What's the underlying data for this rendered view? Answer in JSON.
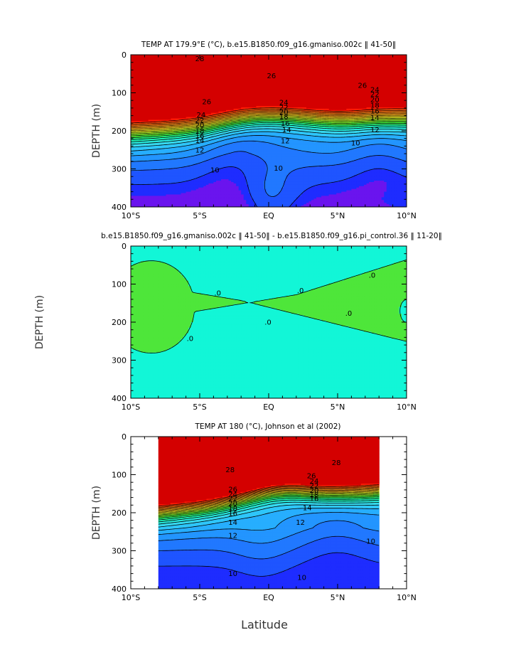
{
  "chart_data": [
    {
      "type": "contour",
      "title": "TEMP AT 179.9°E (°C), b.e15.B1850.f09_g16.gmaniso.002c ‖ 41-50‖",
      "ylabel": "DEPTH (m)",
      "x_ticks": [
        "10°S",
        "5°S",
        "EQ",
        "5°N",
        "10°N"
      ],
      "y_ticks": [
        "0",
        "100",
        "200",
        "300",
        "400"
      ],
      "xlim": [
        -10,
        10
      ],
      "ylim": [
        0,
        400
      ],
      "data_xlim": [
        -10,
        10
      ],
      "levels": [
        10,
        11,
        12,
        13,
        14,
        15,
        16,
        17,
        18,
        19,
        20,
        21,
        22,
        23,
        24,
        25,
        26,
        27,
        28
      ],
      "contour_labels": [
        {
          "text": "28",
          "lat": -5.0,
          "depth": 10
        },
        {
          "text": "26",
          "lat": 0.2,
          "depth": 55
        },
        {
          "text": "26",
          "lat": 6.8,
          "depth": 80
        },
        {
          "text": "26",
          "lat": -4.5,
          "depth": 123
        },
        {
          "text": "24",
          "lat": 1.1,
          "depth": 125
        },
        {
          "text": "24",
          "lat": 7.7,
          "depth": 92
        },
        {
          "text": "22",
          "lat": 7.7,
          "depth": 104
        },
        {
          "text": "20",
          "lat": 7.7,
          "depth": 118
        },
        {
          "text": "24",
          "lat": -4.9,
          "depth": 158
        },
        {
          "text": "22",
          "lat": 1.1,
          "depth": 138
        },
        {
          "text": "20",
          "lat": 1.1,
          "depth": 150
        },
        {
          "text": "18",
          "lat": 1.1,
          "depth": 163
        },
        {
          "text": "18",
          "lat": 7.7,
          "depth": 133
        },
        {
          "text": "16",
          "lat": 7.7,
          "depth": 148
        },
        {
          "text": "14",
          "lat": 7.7,
          "depth": 165
        },
        {
          "text": "12",
          "lat": 7.7,
          "depth": 197
        },
        {
          "text": "22",
          "lat": -5.0,
          "depth": 172
        },
        {
          "text": "20",
          "lat": -5.0,
          "depth": 185
        },
        {
          "text": "18",
          "lat": -5.0,
          "depth": 200
        },
        {
          "text": "16",
          "lat": -5.0,
          "depth": 213
        },
        {
          "text": "16",
          "lat": 1.2,
          "depth": 180
        },
        {
          "text": "14",
          "lat": -5.0,
          "depth": 225
        },
        {
          "text": "14",
          "lat": 1.3,
          "depth": 197
        },
        {
          "text": "12",
          "lat": -5.0,
          "depth": 250
        },
        {
          "text": "12",
          "lat": 1.2,
          "depth": 226
        },
        {
          "text": "10",
          "lat": 6.3,
          "depth": 232
        },
        {
          "text": "10",
          "lat": -3.9,
          "depth": 303
        },
        {
          "text": "10",
          "lat": 0.7,
          "depth": 298
        }
      ]
    },
    {
      "type": "contour",
      "title": "b.e15.B1850.f09_g16.gmaniso.002c ‖ 41-50‖ - b.e15.B1850.f09_g16.pi_control.36 ‖ 11-20‖",
      "ylabel": "DEPTH (m)",
      "x_ticks": [
        "10°S",
        "5°S",
        "EQ",
        "5°N",
        "10°N"
      ],
      "y_ticks": [
        "0",
        "100",
        "200",
        "300",
        "400"
      ],
      "xlim": [
        -10,
        10
      ],
      "ylim": [
        0,
        400
      ],
      "data_xlim": [
        -10,
        10
      ],
      "levels": [
        0
      ],
      "contour_labels": [
        {
          "text": ".0",
          "lat": -3.7,
          "depth": 123
        },
        {
          "text": ".0",
          "lat": 2.3,
          "depth": 117
        },
        {
          "text": ".0",
          "lat": 7.5,
          "depth": 77
        },
        {
          "text": ".0",
          "lat": 5.8,
          "depth": 177
        },
        {
          "text": ".0",
          "lat": -0.05,
          "depth": 200
        },
        {
          "text": ".0",
          "lat": -5.7,
          "depth": 243
        }
      ]
    },
    {
      "type": "contour",
      "title": "TEMP AT 180 (°C), Johnson et al (2002)",
      "ylabel": "DEPTH (m)",
      "xlabel": "Latitude",
      "x_ticks": [
        "10°S",
        "5°S",
        "EQ",
        "5°N",
        "10°N"
      ],
      "y_ticks": [
        "0",
        "100",
        "200",
        "300",
        "400"
      ],
      "xlim": [
        -10,
        10
      ],
      "ylim": [
        0,
        400
      ],
      "data_xlim": [
        -8,
        8
      ],
      "levels": [
        10,
        11,
        12,
        13,
        14,
        15,
        16,
        17,
        18,
        19,
        20,
        21,
        22,
        23,
        24,
        25,
        26,
        27,
        28
      ],
      "contour_labels": [
        {
          "text": "28",
          "lat": 4.9,
          "depth": 68
        },
        {
          "text": "28",
          "lat": -2.8,
          "depth": 87
        },
        {
          "text": "26",
          "lat": 3.1,
          "depth": 103
        },
        {
          "text": "24",
          "lat": 3.3,
          "depth": 117
        },
        {
          "text": "22",
          "lat": 3.3,
          "depth": 129
        },
        {
          "text": "20",
          "lat": 3.3,
          "depth": 141
        },
        {
          "text": "18",
          "lat": 3.3,
          "depth": 152
        },
        {
          "text": "16",
          "lat": 3.3,
          "depth": 163
        },
        {
          "text": "14",
          "lat": 2.8,
          "depth": 187
        },
        {
          "text": "12",
          "lat": 2.3,
          "depth": 225
        },
        {
          "text": "26",
          "lat": -2.6,
          "depth": 138
        },
        {
          "text": "24",
          "lat": -2.6,
          "depth": 151
        },
        {
          "text": "22",
          "lat": -2.6,
          "depth": 163
        },
        {
          "text": "20",
          "lat": -2.6,
          "depth": 176
        },
        {
          "text": "18",
          "lat": -2.6,
          "depth": 189
        },
        {
          "text": "16",
          "lat": -2.6,
          "depth": 202
        },
        {
          "text": "14",
          "lat": -2.6,
          "depth": 225
        },
        {
          "text": "12",
          "lat": -2.6,
          "depth": 260
        },
        {
          "text": "10",
          "lat": 7.4,
          "depth": 275
        },
        {
          "text": "10",
          "lat": -2.6,
          "depth": 360
        },
        {
          "text": "10",
          "lat": 2.4,
          "depth": 370
        }
      ]
    }
  ],
  "colors": {
    "tempRamp": [
      "#1e2cff",
      "#1f55ff",
      "#2178ff",
      "#2395ff",
      "#27aefe",
      "#2ec6fa",
      "#37d9f0",
      "#27e6d8",
      "#1ef0b2",
      "#27f07c",
      "#46ed3b",
      "#80ef2e",
      "#b8f22a",
      "#eef228",
      "#ffd827",
      "#ffb41f",
      "#ff961f",
      "#ff7513",
      "#ff4c0a",
      "#ff1a05",
      "#d40000"
    ],
    "purple": "#6a14ee",
    "diffGreen": "#4ee63a",
    "diffCyan": "#12f6d7"
  }
}
